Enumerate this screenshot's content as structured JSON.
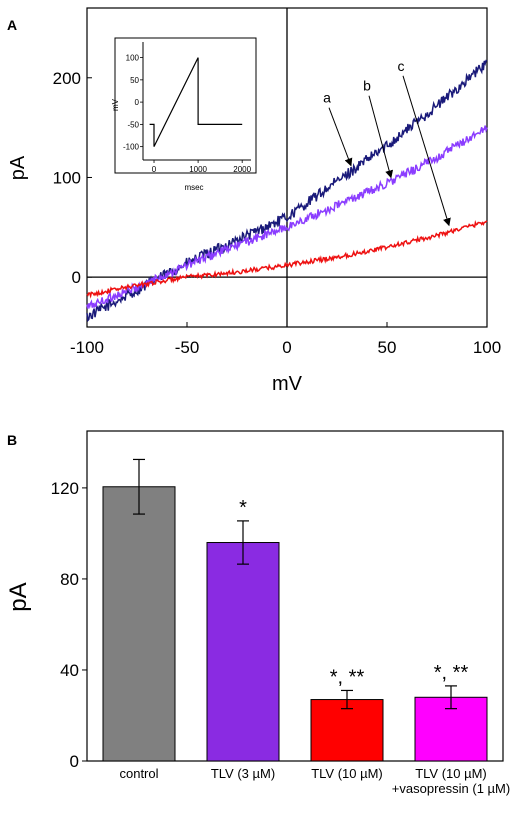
{
  "chart_data": [
    {
      "panel": "A",
      "type": "line",
      "xlabel": "mV",
      "ylabel": "pA",
      "xlim": [
        -100,
        100
      ],
      "ylim": [
        -50,
        270
      ],
      "xticks": [
        -100,
        -50,
        0,
        50,
        100
      ],
      "yticks": [
        0,
        100,
        200
      ],
      "grid": false,
      "series": [
        {
          "label": "a",
          "color": "#1a1a7a",
          "x": [
            -100,
            -75,
            -50,
            -25,
            0,
            25,
            50,
            75,
            100
          ],
          "y": [
            -40,
            -13,
            14,
            37,
            60,
            96,
            132,
            172,
            215
          ]
        },
        {
          "label": "b",
          "color": "#8b3dff",
          "x": [
            -100,
            -75,
            -50,
            -25,
            0,
            25,
            50,
            75,
            100
          ],
          "y": [
            -30,
            -10,
            12,
            32,
            50,
            72,
            94,
            120,
            150
          ]
        },
        {
          "label": "c",
          "color": "#ee1111",
          "x": [
            -100,
            -75,
            -50,
            -25,
            0,
            25,
            50,
            75,
            100
          ],
          "y": [
            -18,
            -8,
            0,
            5,
            12,
            20,
            30,
            42,
            56
          ]
        }
      ],
      "annotations": [
        {
          "text": "a",
          "text_x": 20,
          "text_y": 175,
          "arrow_to_x": 32,
          "arrow_to_y": 112
        },
        {
          "text": "b",
          "text_y": 187,
          "text_x": 40,
          "arrow_to_x": 52,
          "arrow_to_y": 100
        },
        {
          "text": "c",
          "text_y": 207,
          "text_x": 57,
          "arrow_to_x": 81,
          "arrow_to_y": 52
        }
      ],
      "inset": {
        "xlabel": "msec",
        "ylabel": "mV",
        "xlim": [
          -250,
          2200
        ],
        "ylim": [
          -130,
          135
        ],
        "xticks": [
          0,
          1000,
          2000
        ],
        "yticks": [
          100,
          50,
          0,
          -50,
          -100
        ],
        "protocol_x": [
          -100,
          0,
          0,
          1000,
          1000,
          2000
        ],
        "protocol_y": [
          -50,
          -50,
          -100,
          100,
          -50,
          -50
        ]
      }
    },
    {
      "panel": "B",
      "type": "bar",
      "ylabel": "pA",
      "ylim": [
        0,
        145
      ],
      "yticks": [
        0,
        40,
        80,
        120
      ],
      "categories": [
        "control",
        "TLV (3 µM)",
        "TLV (10 µM)",
        "TLV (10 µM)\n+vasopressin (1 µM)"
      ],
      "category_lines": [
        [
          "control"
        ],
        [
          "TLV (3 µM)"
        ],
        [
          "TLV (10 µM)"
        ],
        [
          "TLV (10 µM)",
          "+vasopressin (1 µM)"
        ]
      ],
      "values": [
        120.5,
        96,
        27,
        28
      ],
      "errors": [
        12,
        9.5,
        4,
        5
      ],
      "colors": [
        "#808080",
        "#8a2be2",
        "#ff0000",
        "#ff00ff"
      ],
      "significance": [
        "",
        "*",
        "*, **",
        "*, **"
      ]
    }
  ]
}
